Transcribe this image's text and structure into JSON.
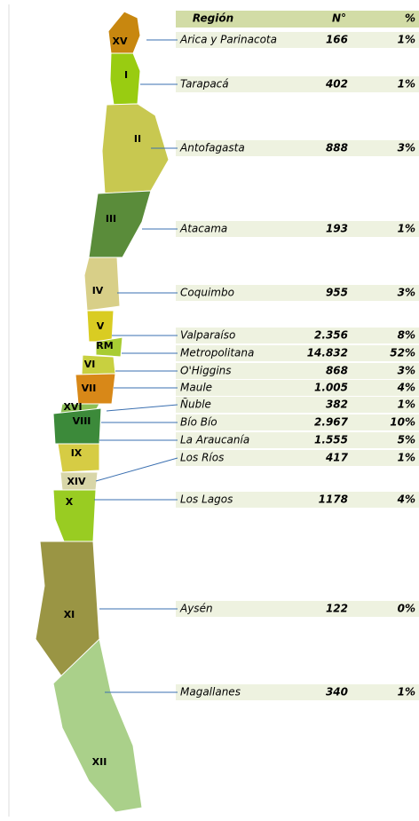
{
  "table": {
    "header": [
      "Región",
      "N°",
      "%"
    ],
    "rows": [
      [
        "XV",
        "Arica y Parinacota",
        "166",
        "1%"
      ],
      [
        "I",
        "Tarapacá",
        "402",
        "1%"
      ],
      [
        "II",
        "Antofagasta",
        "888",
        "3%"
      ],
      [
        "III",
        "Atacama",
        "193",
        "1%"
      ],
      [
        "IV",
        "Coquimbo",
        "955",
        "3%"
      ],
      [
        "V",
        "Valparaíso",
        "2.356",
        "8%"
      ],
      [
        "RM",
        "Metropolitana",
        "14.832",
        "52%"
      ],
      [
        "VI",
        "O'Higgins",
        "868",
        "3%"
      ],
      [
        "VII",
        "Maule",
        "1.005",
        "4%"
      ],
      [
        "XVI",
        "Ñuble",
        "382",
        "1%"
      ],
      [
        "VIII",
        "Bío Bío",
        "2.967",
        "10%"
      ],
      [
        "IX",
        "La Araucanía",
        "1.555",
        "5%"
      ],
      [
        "XIV",
        "Los Ríos",
        "417",
        "1%"
      ],
      [
        "X",
        "Los Lagos",
        "1178",
        "4%"
      ],
      [
        "XI",
        "Aysén",
        "122",
        "0%"
      ],
      [
        "XII",
        "Magallanes",
        "340",
        "1%"
      ]
    ]
  }
}
